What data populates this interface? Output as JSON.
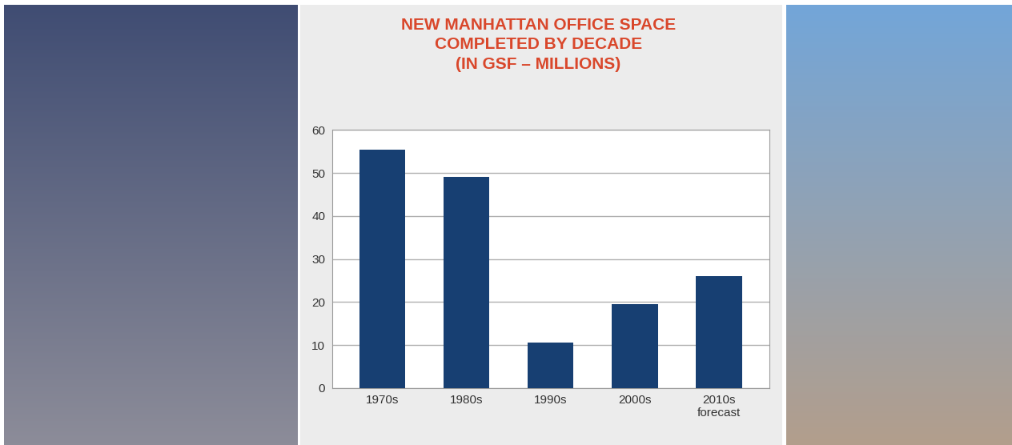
{
  "chart_data": {
    "type": "bar",
    "title": "NEW MANHATTAN OFFICE SPACE\nCOMPLETED BY DECADE\n(IN GSF – MILLIONS)",
    "categories": [
      "1970s",
      "1980s",
      "1990s",
      "2000s",
      "2010s\nforecast"
    ],
    "values": [
      55.5,
      49,
      10.5,
      19.5,
      26
    ],
    "color": "#173f72",
    "ylim": [
      0,
      60
    ],
    "yticks": [
      0,
      10,
      20,
      30,
      40,
      50,
      60
    ],
    "grid": true
  }
}
